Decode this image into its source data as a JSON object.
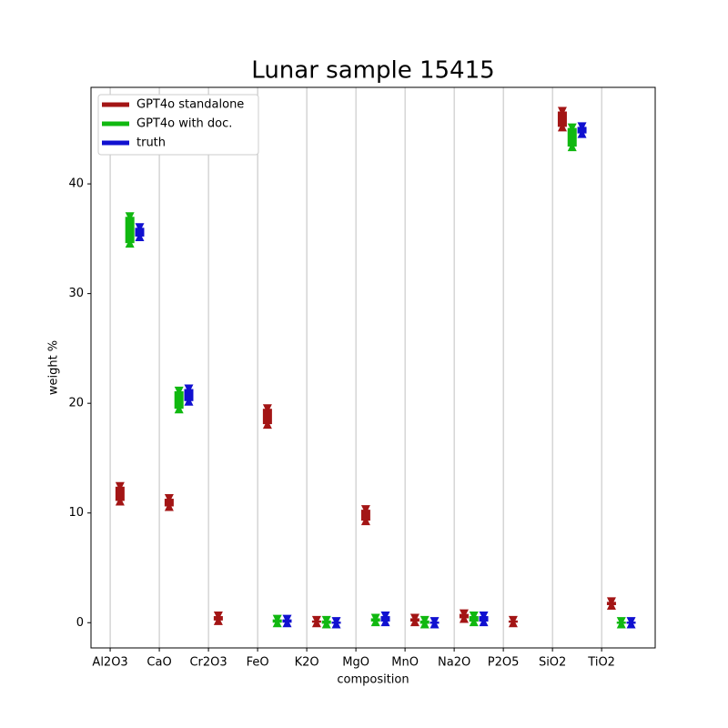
{
  "chart_data": {
    "type": "range",
    "title": "Lunar sample 15415",
    "xlabel": "composition",
    "ylabel": "weight %",
    "categories": [
      "Al2O3",
      "CaO",
      "Cr2O3",
      "FeO",
      "K2O",
      "MgO",
      "MnO",
      "Na2O",
      "P2O5",
      "SiO2",
      "TiO2"
    ],
    "xlim": [
      -0.39,
      11.09
    ],
    "ylim": [
      -2.3,
      48.8
    ],
    "yticks": [
      0,
      10,
      20,
      30,
      40
    ],
    "grid": "x",
    "legend": "upper left",
    "series": [
      {
        "name": "GPT4o standalone",
        "color": "#a31515",
        "offset": 0.2,
        "low": [
          11.1,
          10.6,
          0.2,
          18.1,
          0.0,
          9.3,
          0.1,
          0.4,
          0.0,
          45.2,
          1.6
        ],
        "high": [
          12.4,
          11.3,
          0.6,
          19.5,
          0.2,
          10.3,
          0.4,
          0.8,
          0.2,
          46.6,
          1.9
        ]
      },
      {
        "name": "GPT4o with doc.",
        "color": "#10b810",
        "offset": 0.4,
        "low": [
          34.6,
          19.5,
          null,
          0.0,
          -0.1,
          0.1,
          -0.1,
          0.1,
          null,
          43.4,
          -0.1
        ],
        "high": [
          37.0,
          21.1,
          null,
          0.3,
          0.2,
          0.4,
          0.2,
          0.6,
          null,
          45.1,
          0.1
        ]
      },
      {
        "name": "truth",
        "color": "#1010d0",
        "offset": 0.6,
        "low": [
          35.2,
          20.2,
          null,
          0.0,
          -0.1,
          0.1,
          -0.1,
          0.1,
          null,
          44.6,
          -0.1
        ],
        "high": [
          36.0,
          21.3,
          null,
          0.3,
          0.1,
          0.6,
          0.1,
          0.6,
          null,
          45.2,
          0.1
        ]
      }
    ]
  }
}
